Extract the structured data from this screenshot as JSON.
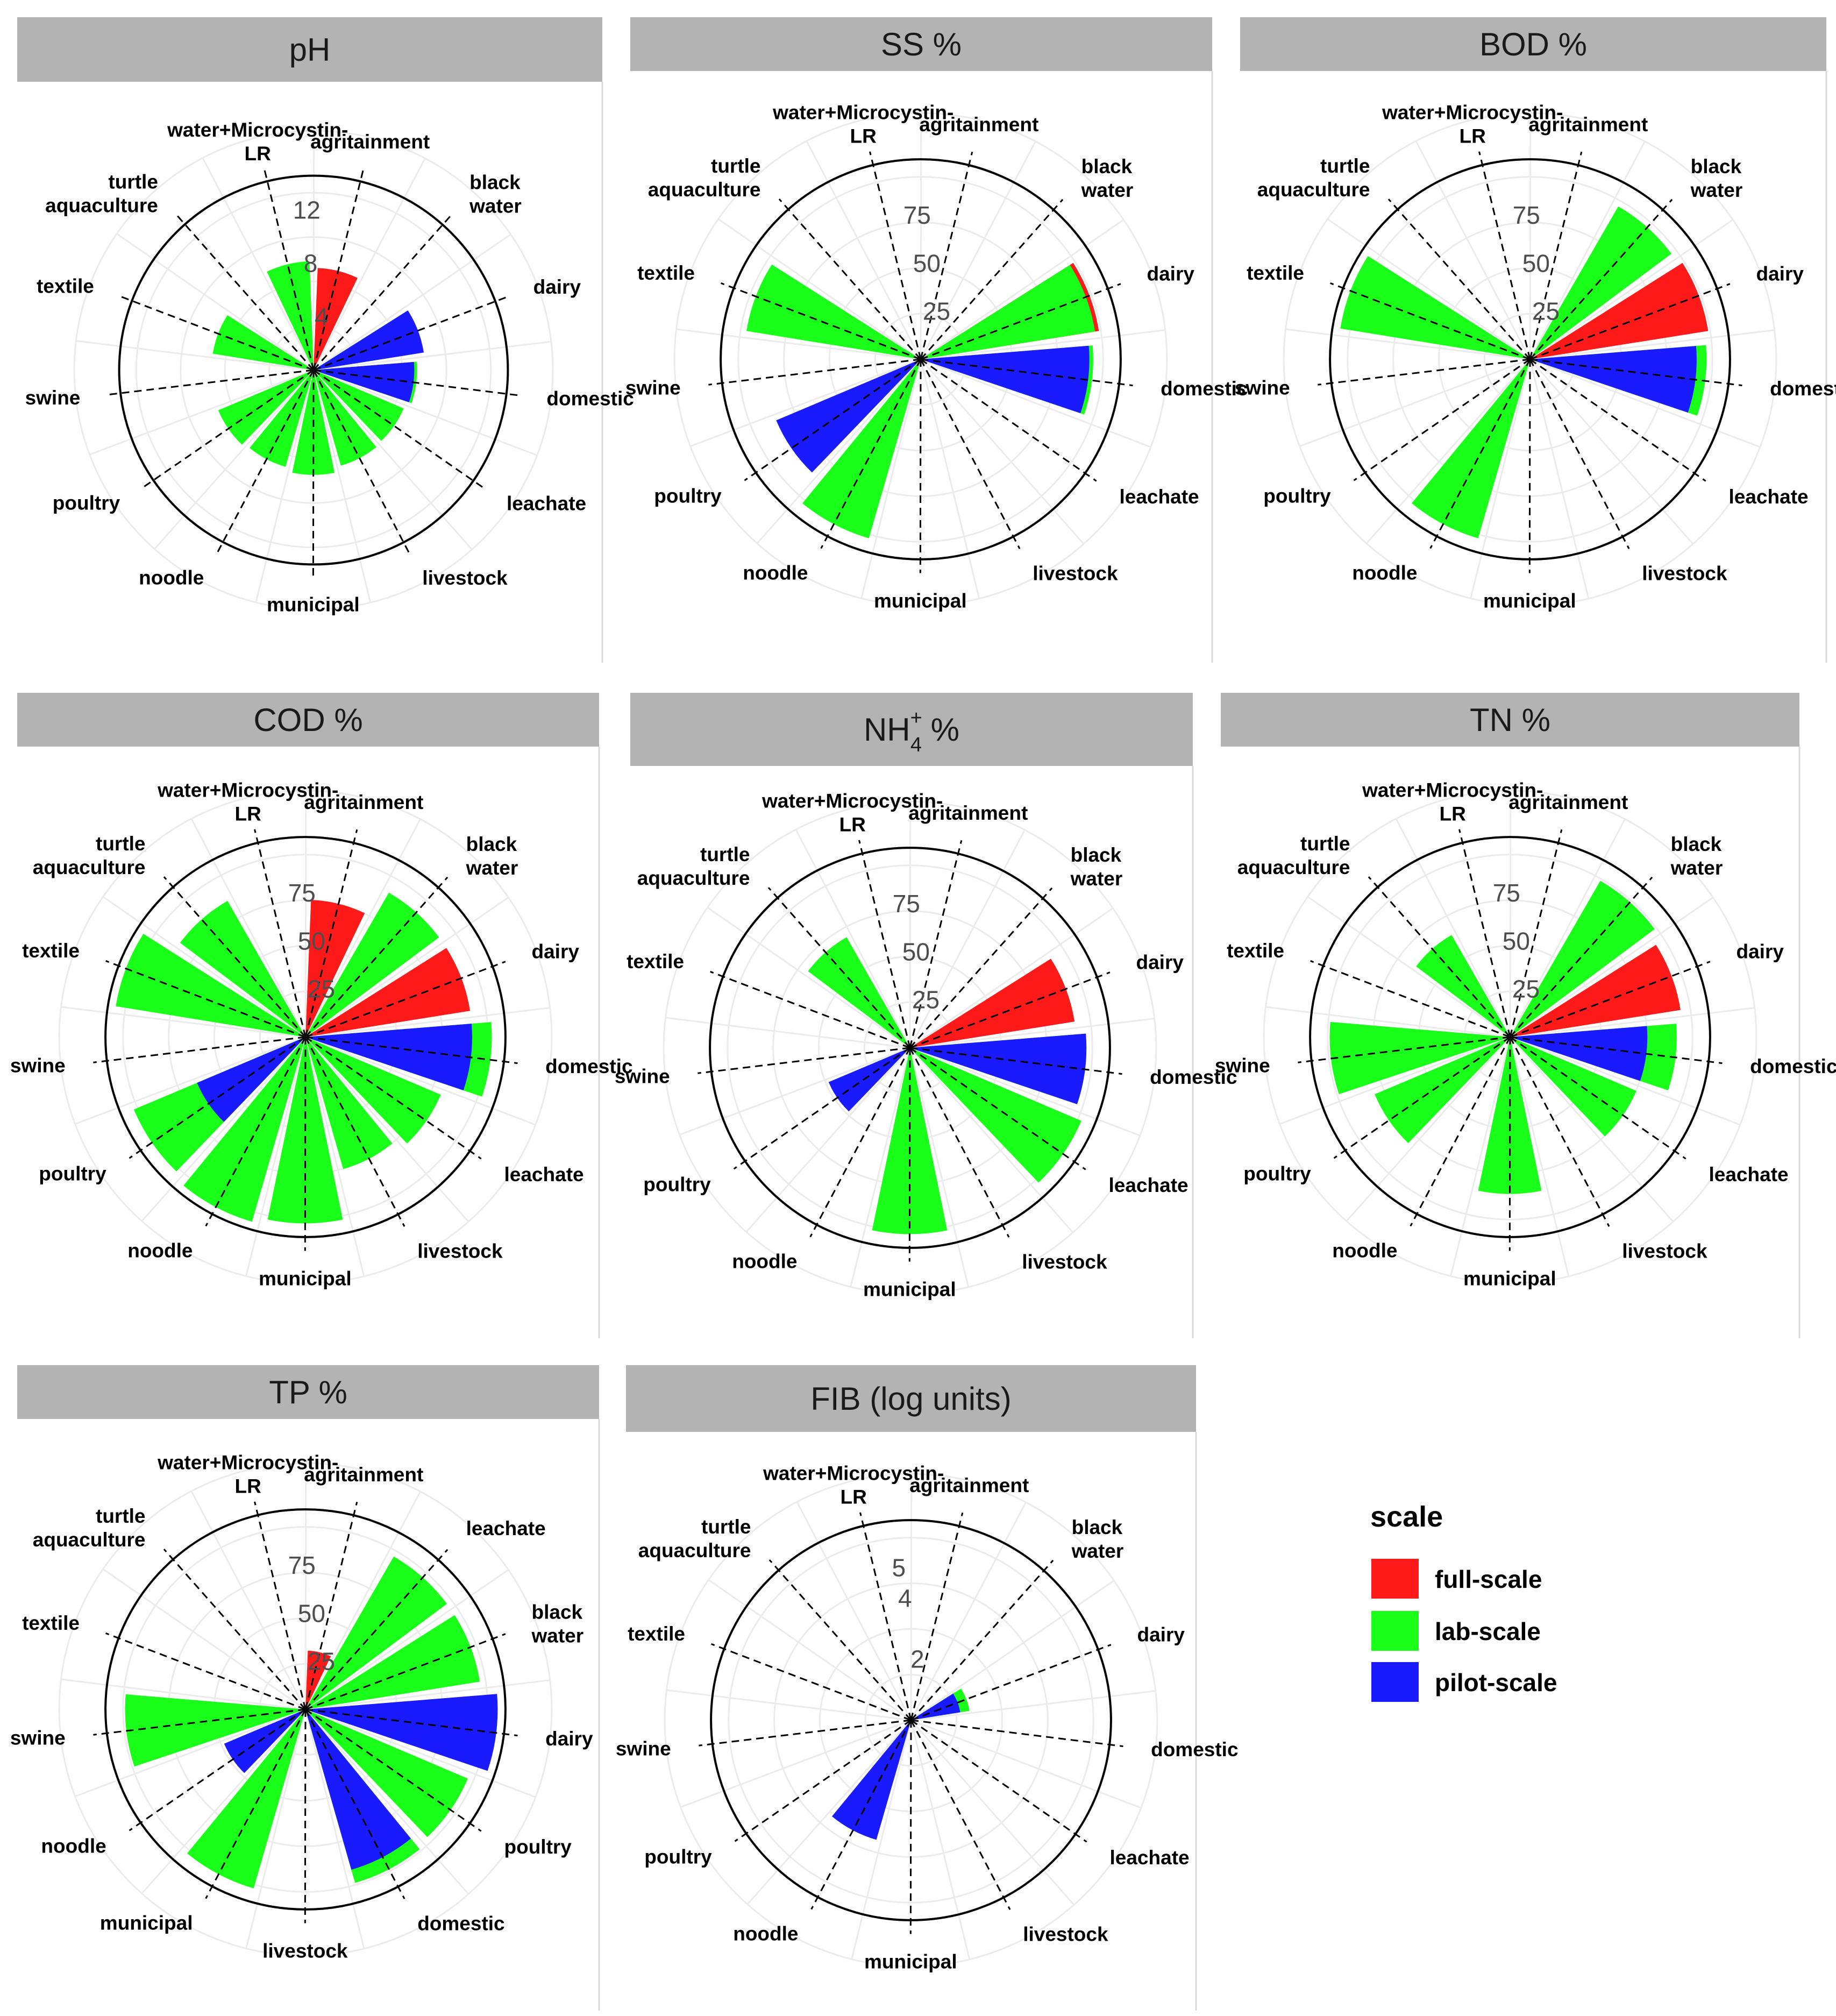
{
  "colors": {
    "full-scale": "#ff1a1a",
    "lab-scale": "#1aff1a",
    "pilot-scale": "#1a1aff",
    "strip": "#b3b3b3",
    "grid": "#ebebeb"
  },
  "legend": {
    "title": "scale",
    "items": [
      "full-scale",
      "lab-scale",
      "pilot-scale"
    ]
  },
  "chart_data": [
    {
      "type": "polar-bar",
      "title": "pH",
      "title_main": "pH",
      "title_sup": "",
      "title_sub": "",
      "title_rest": "",
      "categories": [
        "water+Microcystin-LR",
        "agritainment",
        "black water",
        "dairy",
        "domestic",
        "leachate",
        "livestock",
        "municipal",
        "noodle",
        "poultry",
        "swine",
        "textile",
        "turtle aquaculture"
      ],
      "labels": [
        [
          "water+Microcystin-",
          "LR"
        ],
        [
          "agritainment"
        ],
        [
          "black",
          "water"
        ],
        [
          "dairy"
        ],
        [
          "domestic"
        ],
        [
          "leachate"
        ],
        [
          "livestock"
        ],
        [
          "municipal"
        ],
        [
          "noodle"
        ],
        [
          "poultry"
        ],
        [
          "swine"
        ],
        [
          "textile"
        ],
        [
          "turtle",
          "aquaculture"
        ]
      ],
      "ticks": [
        4,
        8,
        12
      ],
      "tick_labels": [
        "4",
        "8",
        "12"
      ],
      "max": 14,
      "series": [
        {
          "name": "full-scale",
          "values": [
            null,
            7.5,
            null,
            null,
            7.2,
            null,
            null,
            null,
            null,
            null,
            null,
            null,
            null
          ]
        },
        {
          "name": "lab-scale",
          "values": [
            8.0,
            null,
            null,
            7.8,
            7.6,
            7.2,
            7.3,
            7.7,
            7.4,
            7.6,
            null,
            7.5,
            null
          ]
        },
        {
          "name": "pilot-scale",
          "values": [
            null,
            null,
            null,
            8.2,
            7.4,
            null,
            null,
            null,
            null,
            null,
            null,
            null,
            null
          ]
        }
      ]
    },
    {
      "type": "polar-bar",
      "title": "SS %",
      "title_main": "SS %",
      "title_sup": "",
      "title_sub": "",
      "title_rest": "",
      "categories": [
        "water+Microcystin-LR",
        "agritainment",
        "black water",
        "dairy",
        "domestic",
        "leachate",
        "livestock",
        "municipal",
        "noodle",
        "poultry",
        "swine",
        "textile",
        "turtle aquaculture"
      ],
      "labels": [
        [
          "water+Microcystin-",
          "LR"
        ],
        [
          "agritainment"
        ],
        [
          "black",
          "water"
        ],
        [
          "dairy"
        ],
        [
          "domestic"
        ],
        [
          "leachate"
        ],
        [
          "livestock"
        ],
        [
          "municipal"
        ],
        [
          "noodle"
        ],
        [
          "poultry"
        ],
        [
          "swine"
        ],
        [
          "textile"
        ],
        [
          "turtle",
          "aquaculture"
        ]
      ],
      "ticks": [
        25,
        50,
        75
      ],
      "tick_labels": [
        "25",
        "50",
        "75"
      ],
      "max": 100,
      "series": [
        {
          "name": "full-scale",
          "values": [
            null,
            null,
            null,
            92,
            null,
            null,
            null,
            null,
            null,
            null,
            null,
            null,
            null
          ]
        },
        {
          "name": "lab-scale",
          "values": [
            null,
            null,
            null,
            90,
            88,
            null,
            null,
            null,
            95,
            null,
            null,
            90,
            null
          ]
        },
        {
          "name": "pilot-scale",
          "values": [
            null,
            null,
            null,
            null,
            86,
            null,
            null,
            null,
            null,
            80,
            null,
            null,
            null
          ]
        }
      ]
    },
    {
      "type": "polar-bar",
      "title": "BOD %",
      "title_main": "BOD %",
      "title_sup": "",
      "title_sub": "",
      "title_rest": "",
      "categories": [
        "water+Microcystin-LR",
        "agritainment",
        "black water",
        "dairy",
        "domestic",
        "leachate",
        "livestock",
        "municipal",
        "noodle",
        "poultry",
        "swine",
        "textile",
        "turtle aquaculture"
      ],
      "labels": [
        [
          "water+Microcystin-",
          "LR"
        ],
        [
          "agritainment"
        ],
        [
          "black",
          "water"
        ],
        [
          "dairy"
        ],
        [
          "domestic"
        ],
        [
          "leachate"
        ],
        [
          "livestock"
        ],
        [
          "municipal"
        ],
        [
          "noodle"
        ],
        [
          "poultry"
        ],
        [
          "swine"
        ],
        [
          "textile"
        ],
        [
          "turtle",
          "aquaculture"
        ]
      ],
      "ticks": [
        25,
        50,
        75
      ],
      "tick_labels": [
        "25",
        "50",
        "75"
      ],
      "max": 100,
      "series": [
        {
          "name": "full-scale",
          "values": [
            null,
            null,
            null,
            92,
            null,
            null,
            null,
            null,
            null,
            null,
            null,
            null,
            null
          ]
        },
        {
          "name": "lab-scale",
          "values": [
            null,
            null,
            90,
            null,
            90,
            null,
            null,
            null,
            95,
            null,
            null,
            98,
            null
          ]
        },
        {
          "name": "pilot-scale",
          "values": [
            null,
            null,
            null,
            null,
            85,
            null,
            null,
            null,
            null,
            null,
            null,
            null,
            null
          ]
        }
      ]
    },
    {
      "type": "polar-bar",
      "title": "COD %",
      "title_main": "COD %",
      "title_sup": "",
      "title_sub": "",
      "title_rest": "",
      "categories": [
        "water+Microcystin-LR",
        "agritainment",
        "black water",
        "dairy",
        "domestic",
        "leachate",
        "livestock",
        "municipal",
        "noodle",
        "poultry",
        "swine",
        "textile",
        "turtle aquaculture"
      ],
      "labels": [
        [
          "water+Microcystin-",
          "LR"
        ],
        [
          "agritainment"
        ],
        [
          "black",
          "water"
        ],
        [
          "dairy"
        ],
        [
          "domestic"
        ],
        [
          "leachate"
        ],
        [
          "livestock"
        ],
        [
          "municipal"
        ],
        [
          "noodle"
        ],
        [
          "poultry"
        ],
        [
          "swine"
        ],
        [
          "textile"
        ],
        [
          "turtle",
          "aquaculture"
        ]
      ],
      "ticks": [
        25,
        50,
        75
      ],
      "tick_labels": [
        "25",
        "50",
        "75"
      ],
      "max": 100,
      "series": [
        {
          "name": "full-scale",
          "values": [
            null,
            70,
            null,
            85,
            null,
            null,
            null,
            null,
            null,
            null,
            null,
            null,
            null
          ]
        },
        {
          "name": "lab-scale",
          "values": [
            null,
            null,
            85,
            null,
            95,
            75,
            70,
            95,
            98,
            95,
            null,
            98,
            80
          ]
        },
        {
          "name": "pilot-scale",
          "values": [
            null,
            null,
            null,
            null,
            85,
            null,
            null,
            null,
            null,
            60,
            null,
            null,
            null
          ]
        }
      ]
    },
    {
      "type": "polar-bar",
      "title": "NH4+ %",
      "title_main": "NH",
      "title_sup": "+",
      "title_sub": "4",
      "title_rest": " %",
      "categories": [
        "water+Microcystin-LR",
        "agritainment",
        "black water",
        "dairy",
        "domestic",
        "leachate",
        "livestock",
        "municipal",
        "noodle",
        "poultry",
        "swine",
        "textile",
        "turtle aquaculture"
      ],
      "labels": [
        [
          "water+Microcystin-",
          "LR"
        ],
        [
          "agritainment"
        ],
        [
          "black",
          "water"
        ],
        [
          "dairy"
        ],
        [
          "domestic"
        ],
        [
          "leachate"
        ],
        [
          "livestock"
        ],
        [
          "municipal"
        ],
        [
          "noodle"
        ],
        [
          "poultry"
        ],
        [
          "swine"
        ],
        [
          "textile"
        ],
        [
          "turtle",
          "aquaculture"
        ]
      ],
      "ticks": [
        25,
        50,
        75
      ],
      "tick_labels": [
        "25",
        "50",
        "75"
      ],
      "max": 100,
      "series": [
        {
          "name": "full-scale",
          "values": [
            null,
            null,
            null,
            85,
            null,
            null,
            null,
            null,
            null,
            null,
            null,
            null,
            null
          ]
        },
        {
          "name": "lab-scale",
          "values": [
            null,
            null,
            null,
            null,
            90,
            95,
            null,
            95,
            null,
            null,
            null,
            null,
            65
          ]
        },
        {
          "name": "pilot-scale",
          "values": [
            null,
            null,
            null,
            null,
            90,
            null,
            null,
            null,
            null,
            45,
            null,
            null,
            null
          ]
        }
      ]
    },
    {
      "type": "polar-bar",
      "title": "TN %",
      "title_main": "TN %",
      "title_sup": "",
      "title_sub": "",
      "title_rest": "",
      "categories": [
        "water+Microcystin-LR",
        "agritainment",
        "black water",
        "dairy",
        "domestic",
        "leachate",
        "livestock",
        "municipal",
        "noodle",
        "poultry",
        "swine",
        "textile",
        "turtle aquaculture"
      ],
      "labels": [
        [
          "water+Microcystin-",
          "LR"
        ],
        [
          "agritainment"
        ],
        [
          "black",
          "water"
        ],
        [
          "dairy"
        ],
        [
          "domestic"
        ],
        [
          "leachate"
        ],
        [
          "livestock"
        ],
        [
          "municipal"
        ],
        [
          "noodle"
        ],
        [
          "poultry"
        ],
        [
          "swine"
        ],
        [
          "textile"
        ],
        [
          "turtle",
          "aquaculture"
        ]
      ],
      "ticks": [
        25,
        50,
        75
      ],
      "tick_labels": [
        "25",
        "50",
        "75"
      ],
      "max": 100,
      "series": [
        {
          "name": "full-scale",
          "values": [
            null,
            null,
            null,
            88,
            null,
            null,
            null,
            null,
            null,
            null,
            null,
            null,
            null
          ]
        },
        {
          "name": "lab-scale",
          "values": [
            null,
            null,
            92,
            null,
            85,
            70,
            null,
            80,
            null,
            75,
            92,
            null,
            60
          ]
        },
        {
          "name": "pilot-scale",
          "values": [
            null,
            null,
            null,
            null,
            70,
            null,
            null,
            null,
            null,
            null,
            null,
            null,
            null
          ]
        }
      ]
    },
    {
      "type": "polar-bar",
      "title": "TP %",
      "title_main": "TP %",
      "title_sup": "",
      "title_sub": "",
      "title_rest": "",
      "categories": [
        "water+Microcystin-LR",
        "agritainment",
        "leachate",
        "black water",
        "dairy",
        "poultry",
        "domestic",
        "livestock",
        "municipal",
        "noodle",
        "swine",
        "textile",
        "turtle aquaculture"
      ],
      "labels": [
        [
          "water+Microcystin-",
          "LR"
        ],
        [
          "agritainment"
        ],
        [
          "leachate"
        ],
        [
          "black",
          "water"
        ],
        [
          "dairy"
        ],
        [
          "poultry"
        ],
        [
          "domestic"
        ],
        [
          "livestock"
        ],
        [
          "municipal"
        ],
        [
          "noodle"
        ],
        [
          "swine"
        ],
        [
          "textile"
        ],
        [
          "turtle",
          "aquaculture"
        ]
      ],
      "ticks": [
        25,
        50,
        75
      ],
      "tick_labels": [
        "25",
        "50",
        "75"
      ],
      "max": 100,
      "series": [
        {
          "name": "full-scale",
          "values": [
            null,
            30,
            null,
            null,
            null,
            null,
            90,
            null,
            null,
            null,
            null,
            null,
            null
          ]
        },
        {
          "name": "lab-scale",
          "values": [
            null,
            null,
            90,
            90,
            null,
            90,
            92,
            null,
            95,
            null,
            92,
            null,
            null
          ]
        },
        {
          "name": "pilot-scale",
          "values": [
            null,
            null,
            null,
            null,
            98,
            null,
            85,
            null,
            null,
            45,
            null,
            null,
            null
          ]
        }
      ]
    },
    {
      "type": "polar-bar",
      "title": "FIB (log units)",
      "title_main": "FIB (log units)",
      "title_sup": "",
      "title_sub": "",
      "title_rest": "",
      "categories": [
        "water+Microcystin-LR",
        "agritainment",
        "black water",
        "dairy",
        "domestic",
        "leachate",
        "livestock",
        "municipal",
        "noodle",
        "poultry",
        "swine",
        "textile",
        "turtle aquaculture"
      ],
      "labels": [
        [
          "water+Microcystin-",
          "LR"
        ],
        [
          "agritainment"
        ],
        [
          "black",
          "water"
        ],
        [
          "dairy"
        ],
        [
          "domestic"
        ],
        [
          "leachate"
        ],
        [
          "livestock"
        ],
        [
          "municipal"
        ],
        [
          "noodle"
        ],
        [
          "poultry"
        ],
        [
          "swine"
        ],
        [
          "textile"
        ],
        [
          "turtle",
          "aquaculture"
        ]
      ],
      "ticks": [
        2,
        4,
        5
      ],
      "tick_labels": [
        "2",
        "4",
        "5"
      ],
      "max": 6.3,
      "series": [
        {
          "name": "full-scale",
          "values": [
            null,
            null,
            null,
            null,
            null,
            null,
            null,
            null,
            null,
            null,
            null,
            null,
            null
          ]
        },
        {
          "name": "lab-scale",
          "values": [
            null,
            null,
            null,
            1.9,
            null,
            null,
            null,
            null,
            null,
            null,
            null,
            null,
            null
          ]
        },
        {
          "name": "pilot-scale",
          "values": [
            null,
            null,
            null,
            1.6,
            null,
            null,
            null,
            null,
            4.0,
            null,
            null,
            null,
            null
          ]
        }
      ]
    }
  ]
}
